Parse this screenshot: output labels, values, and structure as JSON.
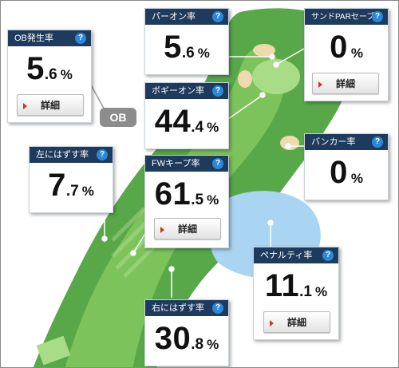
{
  "help_glyph": "?",
  "ob_tag": "OB",
  "cards": {
    "ob": {
      "title": "OB発生率",
      "big": "5",
      "small": ".6",
      "unit": "%",
      "detail": "詳細"
    },
    "par_on": {
      "title": "パーオン率",
      "big": "5",
      "small": ".6",
      "unit": "%"
    },
    "sand_save": {
      "title": "サンドPARセーブ率",
      "big": "0",
      "small": "",
      "unit": "%",
      "detail": "詳細"
    },
    "bogey_on": {
      "title": "ボギーオン率",
      "big": "44",
      "small": ".4",
      "unit": "%"
    },
    "bunker": {
      "title": "バンカー率",
      "big": "0",
      "small": "",
      "unit": "%"
    },
    "miss_left": {
      "title": "左にはずす率",
      "big": "7",
      "small": ".7",
      "unit": "%"
    },
    "fw_keep": {
      "title": "FWキープ率",
      "big": "61",
      "small": ".5",
      "unit": "%",
      "detail": "詳細"
    },
    "penalty": {
      "title": "ペナルティ率",
      "big": "11",
      "small": ".1",
      "unit": "%",
      "detail": "詳細"
    },
    "miss_right": {
      "title": "右にはずす率",
      "big": "30",
      "small": ".8",
      "unit": "%"
    }
  },
  "colors": {
    "header_bg": "#1e3a5c",
    "help_bg": "#2b87d8",
    "rough": "#58a84a",
    "fairway": "#7cc35c",
    "green": "#a9dc86",
    "water": "#a9d4f2",
    "bunker": "#efd9ae"
  }
}
